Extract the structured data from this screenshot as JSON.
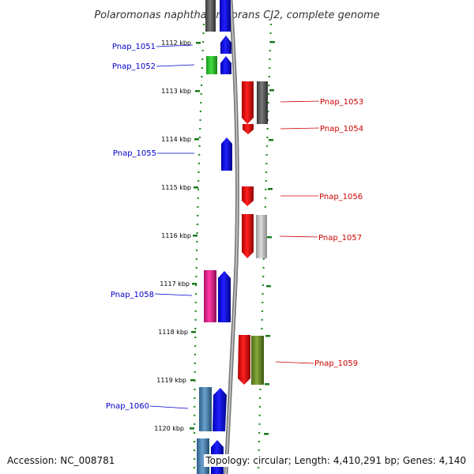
{
  "title": "Polaromonas naphthalenivorans CJ2, complete genome",
  "footer": {
    "accession": "Accession: NC_008781",
    "summary": "Topology: circular; Length: 4,410,291 bp; Genes: 4,140"
  },
  "ticks": [
    "1112 kbp",
    "1113 kbp",
    "1114 kbp",
    "1115 kbp",
    "1116 kbp",
    "1117 kbp",
    "1118 kbp",
    "1119 kbp",
    "1120 kbp"
  ],
  "genes": [
    {
      "label": "Pnap_1051",
      "strand": "left",
      "color": "#1010ee"
    },
    {
      "label": "Pnap_1052",
      "strand": "left",
      "color": "#1010ee"
    },
    {
      "label": "Pnap_1053",
      "strand": "right",
      "color": "#ee1010"
    },
    {
      "label": "Pnap_1054",
      "strand": "right",
      "color": "#ee1010"
    },
    {
      "label": "Pnap_1055",
      "strand": "left",
      "color": "#1010ee"
    },
    {
      "label": "Pnap_1056",
      "strand": "right",
      "color": "#ee1010"
    },
    {
      "label": "Pnap_1057",
      "strand": "right",
      "color": "#ee1010"
    },
    {
      "label": "Pnap_1058",
      "strand": "left",
      "color": "#1010ee"
    },
    {
      "label": "Pnap_1059",
      "strand": "right",
      "color": "#ee1010"
    },
    {
      "label": "Pnap_1060",
      "strand": "left",
      "color": "#1010ee"
    }
  ],
  "colors": {
    "forward": "#1010ee",
    "reverse": "#ee1010",
    "backbone": "#8a8a8a",
    "guide": "#228b22",
    "magenta": "#e0208c",
    "green": "#33cc33",
    "olive": "#6b8e23",
    "steel": "#4682b4",
    "dark_gray": "#555555",
    "light_gray": "#bbbbbb"
  }
}
